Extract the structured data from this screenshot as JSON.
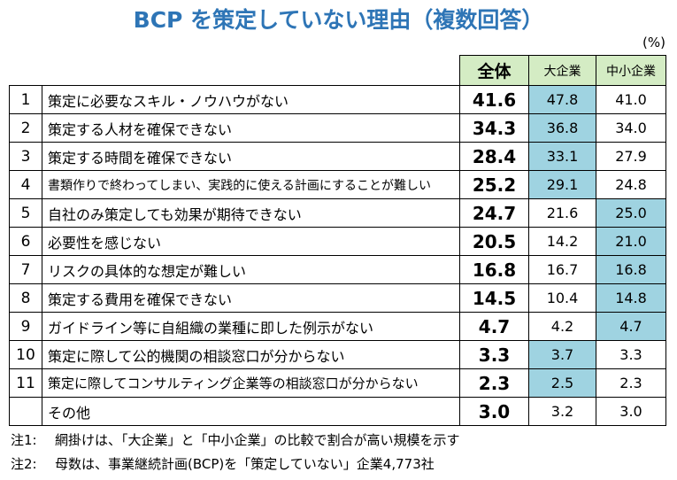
{
  "chart_data": {
    "type": "table",
    "title": "BCP を策定していない理由（複数回答）",
    "unit": "(%)",
    "columns": [
      "全体",
      "大企業",
      "中小企業"
    ],
    "rows": [
      {
        "rank": "1",
        "reason": "策定に必要なスキル・ノウハウがない",
        "values": [
          41.6,
          47.8,
          41.0
        ],
        "highlight": 1
      },
      {
        "rank": "2",
        "reason": "策定する人材を確保できない",
        "values": [
          34.3,
          36.8,
          34.0
        ],
        "highlight": 1
      },
      {
        "rank": "3",
        "reason": "策定する時間を確保できない",
        "values": [
          28.4,
          33.1,
          27.9
        ],
        "highlight": 1
      },
      {
        "rank": "4",
        "reason": "書類作りで終わってしまい、実践的に使える計画にすることが難しい",
        "values": [
          25.2,
          29.1,
          24.8
        ],
        "highlight": 1
      },
      {
        "rank": "5",
        "reason": "自社のみ策定しても効果が期待できない",
        "values": [
          24.7,
          21.6,
          25.0
        ],
        "highlight": 2
      },
      {
        "rank": "6",
        "reason": "必要性を感じない",
        "values": [
          20.5,
          14.2,
          21.0
        ],
        "highlight": 2
      },
      {
        "rank": "7",
        "reason": "リスクの具体的な想定が難しい",
        "values": [
          16.8,
          16.7,
          16.8
        ],
        "highlight": 2
      },
      {
        "rank": "8",
        "reason": "策定する費用を確保できない",
        "values": [
          14.5,
          10.4,
          14.8
        ],
        "highlight": 2
      },
      {
        "rank": "9",
        "reason": "ガイドライン等に自組織の業種に即した例示がない",
        "values": [
          4.7,
          4.2,
          4.7
        ],
        "highlight": 2
      },
      {
        "rank": "10",
        "reason": "策定に際して公的機関の相談窓口が分からない",
        "values": [
          3.3,
          3.7,
          3.3
        ],
        "highlight": 1
      },
      {
        "rank": "11",
        "reason": "策定に際してコンサルティング企業等の相談窓口が分からない",
        "values": [
          2.3,
          2.5,
          2.3
        ],
        "highlight": 1
      },
      {
        "rank": "",
        "reason": "その他",
        "values": [
          3.0,
          3.2,
          3.0
        ],
        "highlight": null
      }
    ]
  },
  "notes": [
    {
      "label": "注1:",
      "text": "網掛けは、「大企業」と「中小企業」の比較で割合が高い規模を示す"
    },
    {
      "label": "注2:",
      "text": "母数は、事業継続計画(BCP)を「策定していない」企業4,773社"
    }
  ],
  "colors": {
    "title": "#2e75b6",
    "header_bg": "#d4ecc4",
    "highlight_bg": "#9fd3e1",
    "border": "#000000"
  }
}
